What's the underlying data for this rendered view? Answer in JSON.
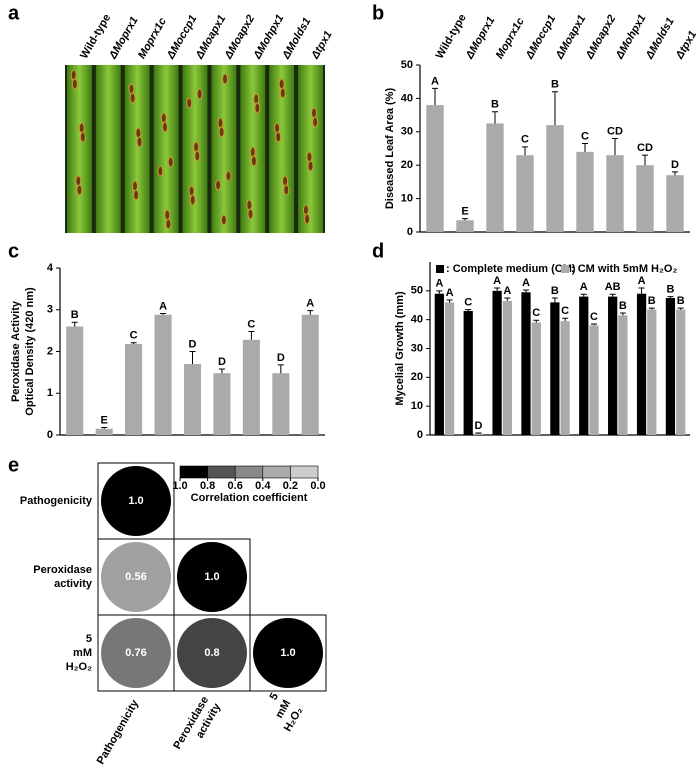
{
  "panel_labels": [
    "a",
    "b",
    "c",
    "d",
    "e"
  ],
  "photo": {
    "strains": [
      "Wild-type",
      "ΔMoprx1",
      "Moprx1c",
      "ΔMoccp1",
      "ΔMoapx1",
      "ΔMoapx2",
      "ΔMohpx1",
      "ΔMolds1",
      "Δtpx1"
    ]
  },
  "chart_data": [
    {
      "type": "bar",
      "ylabel": [
        "Diseased Leaf Area (%)"
      ],
      "categories": [
        "Wild-type",
        "ΔMoprx1",
        "Moprx1c",
        "ΔMoccp1",
        "ΔMoapx1",
        "ΔMoapx2",
        "ΔMohpx1",
        "ΔMolds1",
        "Δtpx1"
      ],
      "values": [
        38,
        3.5,
        32.5,
        23,
        32,
        24,
        23,
        20,
        17
      ],
      "errors": [
        5,
        0.5,
        3.5,
        2.5,
        10,
        2.5,
        5,
        3,
        1
      ],
      "letters": [
        "A",
        "E",
        "B",
        "C",
        "B",
        "C",
        "CD",
        "CD",
        "D"
      ],
      "color": "#aaaaaa",
      "ylim": [
        0,
        50
      ],
      "yticks": [
        0,
        10,
        20,
        30,
        40,
        50
      ]
    },
    {
      "type": "bar",
      "ylabel": [
        "Peroxidase Activity",
        "Optical Density (420 nm)"
      ],
      "values": [
        2.6,
        0.15,
        2.18,
        2.88,
        1.7,
        1.48,
        2.28,
        1.48,
        2.88
      ],
      "errors": [
        0.1,
        0.03,
        0.03,
        0.03,
        0.3,
        0.1,
        0.2,
        0.2,
        0.1
      ],
      "letters": [
        "B",
        "E",
        "C",
        "A",
        "D",
        "D",
        "C",
        "D",
        "A"
      ],
      "color": "#aaaaaa",
      "ylim": [
        0,
        4
      ],
      "yticks": [
        0,
        1,
        2,
        3,
        4
      ]
    },
    {
      "type": "bar",
      "ylabel": [
        "Mycelial Growth (mm)"
      ],
      "series": [
        {
          "name": ": Complete medium (CM)",
          "color": "#000000",
          "values": [
            49,
            43,
            50,
            49.5,
            46,
            48,
            48,
            49,
            47.5
          ],
          "errors": [
            1,
            0.5,
            1,
            0.8,
            1.5,
            0.8,
            0.8,
            2,
            0.5
          ],
          "letters": [
            "A",
            "C",
            "A",
            "A",
            "B",
            "A",
            "AB",
            "A",
            "B"
          ]
        },
        {
          "name": ": CM with 5mM H₂O₂",
          "color": "#aaaaaa",
          "values": [
            46,
            0.5,
            46.5,
            39,
            39.5,
            38,
            41.5,
            43.5,
            43.5
          ],
          "errors": [
            0.8,
            0.2,
            1,
            0.8,
            1,
            0.5,
            0.8,
            0.5,
            0.5
          ],
          "letters": [
            "A",
            "D",
            "A",
            "C",
            "C",
            "C",
            "B",
            "B",
            "B"
          ]
        }
      ],
      "ylim": [
        0,
        60
      ],
      "yticks": [
        0,
        10,
        20,
        30,
        40,
        50
      ]
    },
    {
      "type": "matrix",
      "categories": [
        "Pathogenicity",
        "Peroxidase activity",
        "5 mM H₂O₂"
      ],
      "values": [
        [
          1,
          null,
          null
        ],
        [
          0.56,
          1,
          null
        ],
        [
          0.76,
          0.8,
          1
        ]
      ],
      "value_labels": [
        [
          "1.0",
          null,
          null
        ],
        [
          "0.56",
          "1.0",
          null
        ],
        [
          "0.76",
          "0.8",
          "1.0"
        ]
      ],
      "colors": [
        [
          "#000000",
          null,
          null
        ],
        [
          "#a0a0a0",
          "#000000",
          null
        ],
        [
          "#777777",
          "#444444",
          "#000000"
        ]
      ],
      "colorbar": {
        "ticks": [
          {
            "value": 1,
            "label": "1.0"
          },
          0.8,
          0.6,
          0.4,
          0.2,
          {
            "value": 0,
            "label": "0.0"
          }
        ],
        "colors": [
          "#000000",
          "#555555",
          "#888888",
          "#aaaaaa",
          "#cccccc"
        ],
        "label": "Correlation coefficient"
      }
    }
  ]
}
